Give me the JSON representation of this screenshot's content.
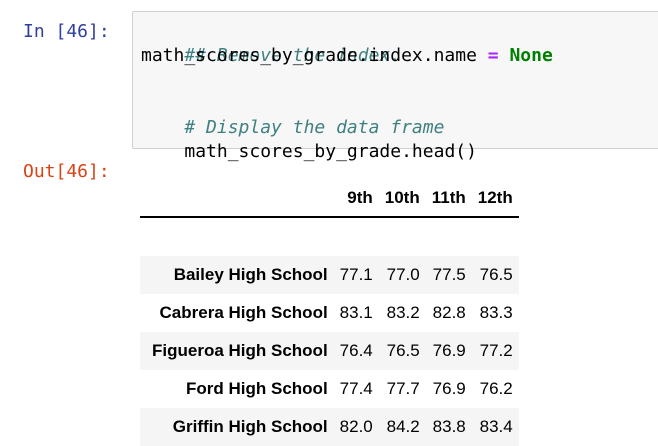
{
  "input_cell": {
    "prompt": "In [46]:",
    "lines": [
      {
        "kind": "comment",
        "text": "## Remove the index."
      },
      {
        "kind": "assign",
        "lhs": "math_scores_by_grade.index.name ",
        "op": "=",
        "rhs": " None"
      },
      {
        "kind": "blank",
        "text": ""
      },
      {
        "kind": "comment",
        "text": "# Display the data frame"
      },
      {
        "kind": "plain",
        "text": "math_scores_by_grade.head()"
      }
    ]
  },
  "output_cell": {
    "prompt": "Out[46]:",
    "table": {
      "columns": [
        "9th",
        "10th",
        "11th",
        "12th"
      ],
      "rows": [
        {
          "index": "Bailey High School",
          "values": [
            "77.1",
            "77.0",
            "77.5",
            "76.5"
          ]
        },
        {
          "index": "Cabrera High School",
          "values": [
            "83.1",
            "83.2",
            "82.8",
            "83.3"
          ]
        },
        {
          "index": "Figueroa High School",
          "values": [
            "76.4",
            "76.5",
            "76.9",
            "77.2"
          ]
        },
        {
          "index": "Ford High School",
          "values": [
            "77.4",
            "77.7",
            "76.9",
            "76.2"
          ]
        },
        {
          "index": "Griffin High School",
          "values": [
            "82.0",
            "84.2",
            "83.8",
            "83.4"
          ]
        }
      ]
    }
  },
  "colors": {
    "in_prompt": "#303f9f",
    "out_prompt": "#d84315",
    "comment": "#408080",
    "operator": "#aa22ff",
    "keyword": "#008000",
    "cell_background": "#f7f7f7",
    "row_stripe": "#f5f5f5"
  }
}
